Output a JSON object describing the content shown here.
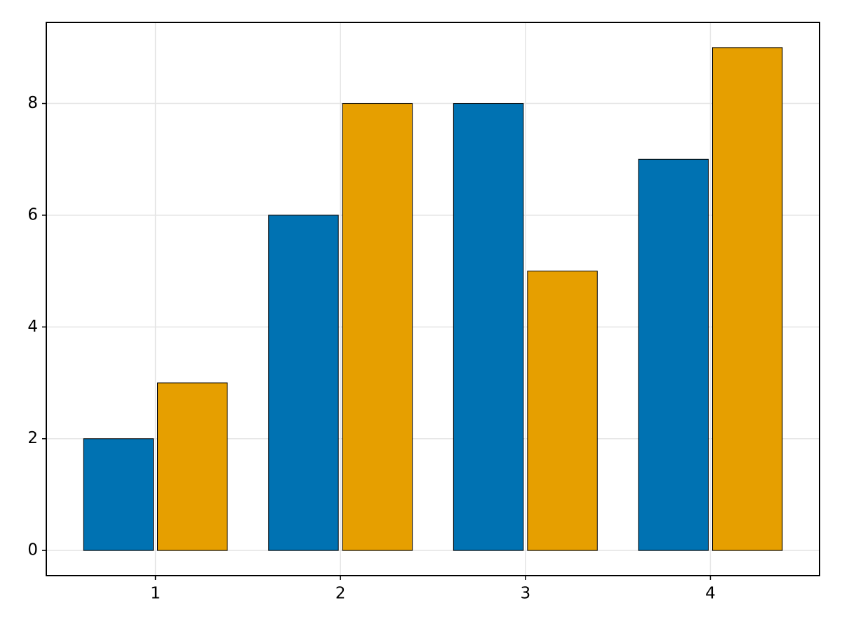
{
  "chart_data": {
    "type": "bar",
    "x": [
      1,
      2,
      3,
      4
    ],
    "series": [
      {
        "color": "#0072b2",
        "values": [
          2,
          6,
          8,
          7
        ]
      },
      {
        "color": "#e69f00",
        "values": [
          3,
          8,
          5,
          9
        ]
      }
    ],
    "xlim": [
      0.41,
      4.59
    ],
    "xticks": [
      1,
      2,
      3,
      4
    ],
    "ylim": [
      -0.45,
      9.45
    ],
    "yticks": [
      0,
      2,
      4,
      6,
      8
    ],
    "grid": true
  }
}
